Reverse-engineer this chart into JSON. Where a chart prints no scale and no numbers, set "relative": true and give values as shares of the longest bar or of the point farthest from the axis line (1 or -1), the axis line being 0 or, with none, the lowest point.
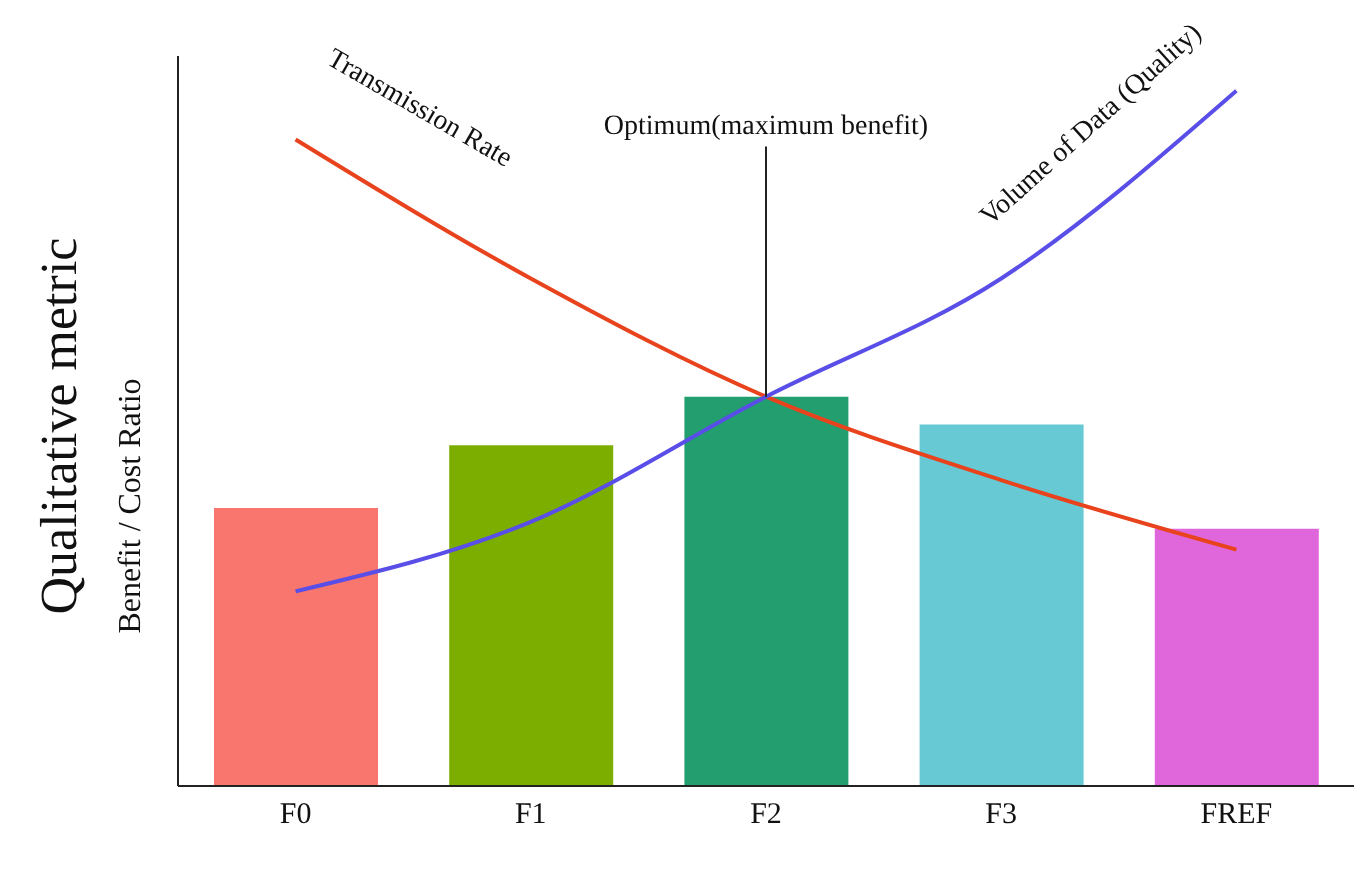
{
  "chart_data": {
    "type": "bar",
    "relative": true,
    "ylabel": "Qualitative metric",
    "categories": [
      "F0",
      "F1",
      "F2",
      "F3",
      "FREF"
    ],
    "series": [
      {
        "colors": [
          "#f8766d",
          "#7cae00",
          "#239e6e",
          "#66c9d4",
          "#e066dc"
        ],
        "values": [
          0.4,
          0.49,
          0.56,
          0.52,
          0.37
        ]
      },
      {
        "type": "line",
        "name": "Transmission Rate",
        "color": "#e8431c",
        "values": [
          0.93,
          0.73,
          0.56,
          0.44,
          0.34
        ]
      },
      {
        "type": "line",
        "name": "Volume of Data (Quality)",
        "color": "#5a4ee8",
        "values": [
          0.28,
          0.38,
          0.56,
          0.73,
          1
        ]
      }
    ],
    "annotations": [
      "Benefit / Cost Ratio",
      {
        "text": "Optimum(maximum benefit)",
        "x": "F2",
        "y": 0.56
      }
    ],
    "legend": false,
    "grid": false
  }
}
